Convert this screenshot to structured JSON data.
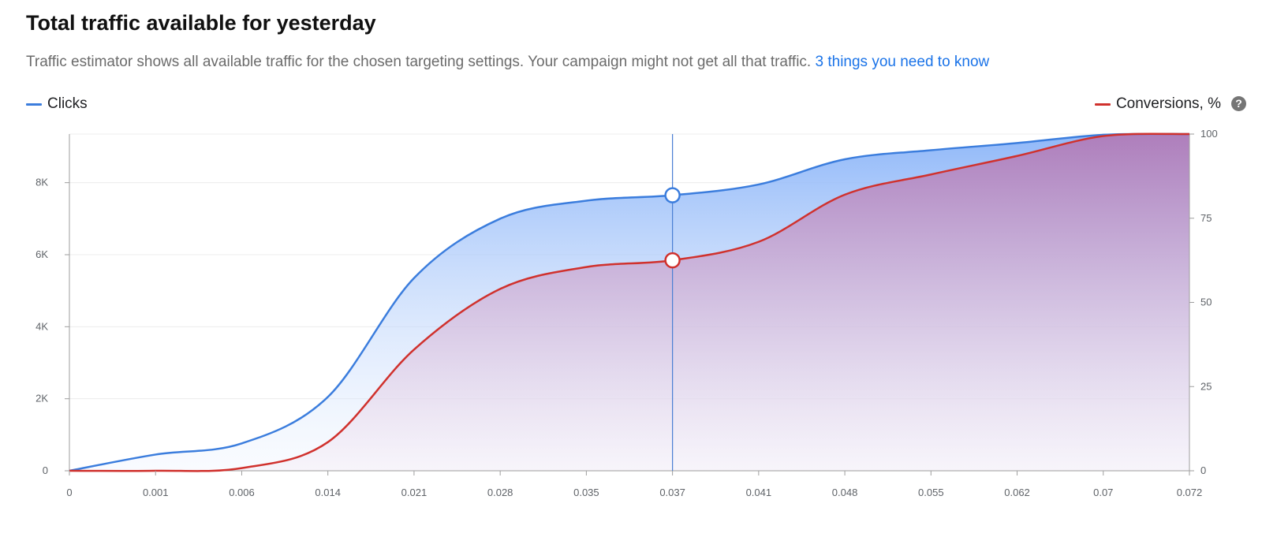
{
  "header": {
    "title": "Total traffic available for yesterday",
    "description": "Traffic estimator shows all available traffic for the chosen targeting settings. Your campaign might not get all that traffic.",
    "link_text": "3 things you need to know"
  },
  "colors": {
    "clicks": "#3b7ddd",
    "conversions": "#d0312d",
    "link": "#1a73e8"
  },
  "chart_data": {
    "type": "area",
    "x_tick_labels": [
      "0",
      "0.001",
      "0.006",
      "0.014",
      "0.021",
      "0.028",
      "0.035",
      "0.037",
      "0.041",
      "0.048",
      "0.055",
      "0.062",
      "0.07",
      "0.072"
    ],
    "y_left": {
      "ylim": [
        0,
        9350
      ],
      "ticks": [
        0,
        2000,
        4000,
        6000,
        8000
      ],
      "tick_labels": [
        "0",
        "2K",
        "4K",
        "6K",
        "8K"
      ]
    },
    "y_right": {
      "ylim": [
        0,
        100
      ],
      "ticks": [
        0,
        25,
        50,
        75,
        100
      ],
      "tick_labels": [
        "0",
        "25",
        "50",
        "75",
        "100"
      ]
    },
    "grid": true,
    "legend": {
      "left": "Clicks",
      "right": "Conversions, %"
    },
    "series": [
      {
        "name": "Clicks",
        "axis": "left",
        "values": [
          0,
          450,
          760,
          2050,
          5350,
          7000,
          7500,
          7650,
          7950,
          8650,
          8900,
          9100,
          9330,
          9350
        ]
      },
      {
        "name": "Conversions, %",
        "axis": "right",
        "values": [
          0,
          0,
          0.8,
          8.5,
          36,
          54,
          60.5,
          62.5,
          68,
          82,
          88,
          93.5,
          99.4,
          100
        ]
      }
    ],
    "highlighted_x": "0.037"
  }
}
